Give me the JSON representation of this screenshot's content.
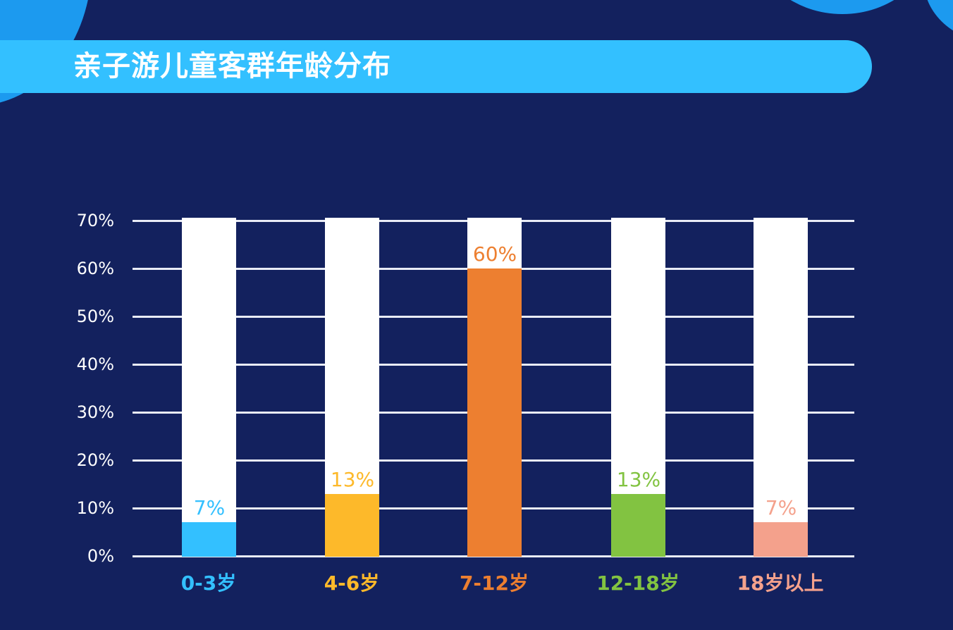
{
  "title": "亲子游儿童客群年龄分布",
  "colors": {
    "background": "#13215e",
    "title_bar": "#33c0ff",
    "decor_blob": "#1c9aef",
    "track": "#ffffff",
    "grid": "#e9ecf6"
  },
  "chart_data": {
    "type": "bar",
    "title": "亲子游儿童客群年龄分布",
    "xlabel": "",
    "ylabel": "",
    "categories": [
      "0-3岁",
      "4-6岁",
      "7-12岁",
      "12-18岁",
      "18岁以上"
    ],
    "values": [
      7,
      13,
      60,
      13,
      7
    ],
    "value_labels": [
      "7%",
      "13%",
      "60%",
      "13%",
      "7%"
    ],
    "bar_colors": [
      "#33c0ff",
      "#fdb92a",
      "#ed7f30",
      "#82c341",
      "#f4a18c"
    ],
    "ylim": [
      0,
      70
    ],
    "yticks": [
      "0%",
      "10%",
      "20%",
      "30%",
      "40%",
      "50%",
      "60%",
      "70%"
    ],
    "grid": true,
    "legend": "none",
    "background_track_to": 70
  }
}
